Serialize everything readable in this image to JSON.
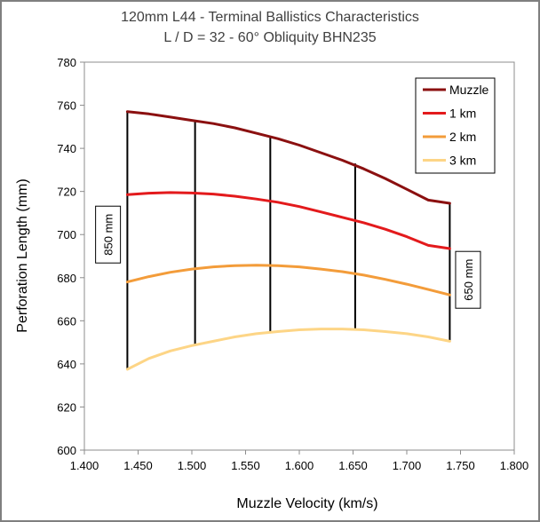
{
  "chart_data": {
    "type": "line",
    "title": "120mm L44  - Terminal Ballistics Characteristics",
    "subtitle": "L / D = 32  -  60° Obliquity  BHN235",
    "xlabel": "Muzzle Velocity (km/s)",
    "ylabel": "Perforation Length (mm)",
    "xlim": [
      1.4,
      1.8
    ],
    "ylim": [
      600,
      780
    ],
    "x_ticks": [
      "1.400",
      "1.450",
      "1.500",
      "1.550",
      "1.600",
      "1.650",
      "1.700",
      "1.750",
      "1.800"
    ],
    "y_ticks": [
      "600",
      "620",
      "640",
      "660",
      "680",
      "700",
      "720",
      "740",
      "760",
      "780"
    ],
    "grid": false,
    "legend_position": "top-right",
    "series": [
      {
        "name": "Muzzle",
        "color": "#8b1010",
        "x": [
          1.44,
          1.46,
          1.48,
          1.5,
          1.52,
          1.54,
          1.56,
          1.58,
          1.6,
          1.62,
          1.64,
          1.66,
          1.68,
          1.7,
          1.72,
          1.74
        ],
        "y": [
          757,
          756,
          754.5,
          753,
          751.5,
          749.5,
          747,
          744.5,
          741.5,
          738,
          734.5,
          730.5,
          726,
          721,
          716,
          714.5
        ]
      },
      {
        "name": "1 km",
        "color": "#e31a1c",
        "x": [
          1.44,
          1.46,
          1.48,
          1.5,
          1.52,
          1.54,
          1.56,
          1.58,
          1.6,
          1.62,
          1.64,
          1.66,
          1.68,
          1.7,
          1.72,
          1.74
        ],
        "y": [
          718.5,
          719.2,
          719.5,
          719.3,
          718.8,
          717.8,
          716.5,
          715,
          713,
          710.5,
          708,
          705.5,
          702.5,
          699,
          695,
          693.5
        ]
      },
      {
        "name": "2 km",
        "color": "#f39c3a",
        "x": [
          1.44,
          1.46,
          1.48,
          1.5,
          1.52,
          1.54,
          1.56,
          1.58,
          1.6,
          1.62,
          1.64,
          1.66,
          1.68,
          1.7,
          1.72,
          1.74
        ],
        "y": [
          678,
          680.5,
          682.5,
          684,
          685,
          685.6,
          685.8,
          685.6,
          685,
          684,
          682.8,
          681.2,
          679.2,
          677,
          674.5,
          672
        ]
      },
      {
        "name": "3 km",
        "color": "#fdd586",
        "x": [
          1.44,
          1.46,
          1.48,
          1.5,
          1.52,
          1.54,
          1.56,
          1.58,
          1.6,
          1.62,
          1.64,
          1.66,
          1.68,
          1.7,
          1.72,
          1.74
        ],
        "y": [
          637.5,
          642.5,
          646,
          648.5,
          650.5,
          652.5,
          654,
          655,
          655.8,
          656.2,
          656.2,
          655.8,
          655,
          654,
          652.5,
          650.5
        ]
      }
    ],
    "velocity_bars": [
      {
        "x": 1.44,
        "y_from": 637.5,
        "y_to": 757
      },
      {
        "x": 1.503,
        "y_from": 648.5,
        "y_to": 753
      },
      {
        "x": 1.573,
        "y_from": 655,
        "y_to": 745.5
      },
      {
        "x": 1.652,
        "y_from": 656,
        "y_to": 733
      },
      {
        "x": 1.74,
        "y_from": 650.5,
        "y_to": 714.5
      }
    ],
    "annotations": [
      {
        "text": "850 mm",
        "x": 1.422,
        "y": 700
      },
      {
        "text": "650 mm",
        "x": 1.757,
        "y": 679
      }
    ]
  }
}
